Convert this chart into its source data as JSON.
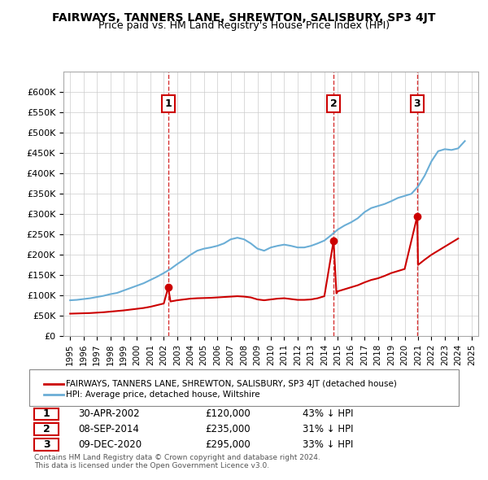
{
  "title": "FAIRWAYS, TANNERS LANE, SHREWTON, SALISBURY, SP3 4JT",
  "subtitle": "Price paid vs. HM Land Registry's House Price Index (HPI)",
  "ylim": [
    0,
    650000
  ],
  "yticks": [
    0,
    50000,
    100000,
    150000,
    200000,
    250000,
    300000,
    350000,
    400000,
    450000,
    500000,
    550000,
    600000
  ],
  "ytick_labels": [
    "£0",
    "£50K",
    "£100K",
    "£150K",
    "£200K",
    "£250K",
    "£300K",
    "£350K",
    "£400K",
    "£450K",
    "£500K",
    "£550K",
    "£600K"
  ],
  "hpi_color": "#6baed6",
  "price_color": "#cc0000",
  "sale_marker_color": "#cc0000",
  "vline_color": "#cc0000",
  "grid_color": "#cccccc",
  "bg_color": "#ffffff",
  "legend_box_color": "#000000",
  "sale_label_bg": "#ffffff",
  "sale_label_border": "#cc0000",
  "transactions": [
    {
      "date_year": 2002.33,
      "price": 120000,
      "label": "1",
      "vline_x": 2002.33
    },
    {
      "date_year": 2014.69,
      "price": 235000,
      "label": "2",
      "vline_x": 2014.69
    },
    {
      "date_year": 2020.94,
      "price": 295000,
      "label": "3",
      "vline_x": 2020.94
    }
  ],
  "transaction_table": [
    {
      "num": "1",
      "date": "30-APR-2002",
      "price": "£120,000",
      "hpi": "43% ↓ HPI"
    },
    {
      "num": "2",
      "date": "08-SEP-2014",
      "price": "£235,000",
      "hpi": "31% ↓ HPI"
    },
    {
      "num": "3",
      "date": "09-DEC-2020",
      "price": "£295,000",
      "hpi": "33% ↓ HPI"
    }
  ],
  "footer": "Contains HM Land Registry data © Crown copyright and database right 2024.\nThis data is licensed under the Open Government Licence v3.0.",
  "legend_property": "FAIRWAYS, TANNERS LANE, SHREWTON, SALISBURY, SP3 4JT (detached house)",
  "legend_hpi": "HPI: Average price, detached house, Wiltshire",
  "hpi_data_x": [
    1995,
    1995.5,
    1996,
    1996.5,
    1997,
    1997.5,
    1998,
    1998.5,
    1999,
    1999.5,
    2000,
    2000.5,
    2001,
    2001.5,
    2002,
    2002.5,
    2003,
    2003.5,
    2004,
    2004.5,
    2005,
    2005.5,
    2006,
    2006.5,
    2007,
    2007.5,
    2008,
    2008.5,
    2009,
    2009.5,
    2010,
    2010.5,
    2011,
    2011.5,
    2012,
    2012.5,
    2013,
    2013.5,
    2014,
    2014.5,
    2015,
    2015.5,
    2016,
    2016.5,
    2017,
    2017.5,
    2018,
    2018.5,
    2019,
    2019.5,
    2020,
    2020.5,
    2021,
    2021.5,
    2022,
    2022.5,
    2023,
    2023.5,
    2024,
    2024.5
  ],
  "hpi_data_y": [
    88000,
    89000,
    91000,
    93000,
    96000,
    99000,
    103000,
    106000,
    112000,
    118000,
    124000,
    130000,
    138000,
    146000,
    155000,
    165000,
    177000,
    188000,
    200000,
    210000,
    215000,
    218000,
    222000,
    228000,
    238000,
    242000,
    238000,
    228000,
    215000,
    210000,
    218000,
    222000,
    225000,
    222000,
    218000,
    218000,
    222000,
    228000,
    235000,
    248000,
    262000,
    272000,
    280000,
    290000,
    305000,
    315000,
    320000,
    325000,
    332000,
    340000,
    345000,
    350000,
    368000,
    395000,
    430000,
    455000,
    460000,
    458000,
    462000,
    480000
  ],
  "price_data_x": [
    1995,
    1995.5,
    1996,
    1996.5,
    1997,
    1997.5,
    1998,
    1998.5,
    1999,
    1999.5,
    2000,
    2000.5,
    2001,
    2001.5,
    2002,
    2002.33,
    2002.5,
    2003,
    2003.5,
    2004,
    2004.5,
    2005,
    2005.5,
    2006,
    2006.5,
    2007,
    2007.5,
    2008,
    2008.5,
    2009,
    2009.5,
    2010,
    2010.5,
    2011,
    2011.5,
    2012,
    2012.5,
    2013,
    2013.5,
    2014,
    2014.69,
    2014.9,
    2015,
    2015.5,
    2016,
    2016.5,
    2017,
    2017.5,
    2018,
    2018.5,
    2019,
    2019.5,
    2020,
    2020.94,
    2021,
    2021.5,
    2022,
    2022.5,
    2023,
    2023.5,
    2024
  ],
  "price_data_y": [
    55000,
    55500,
    56000,
    56500,
    57500,
    58500,
    60000,
    61500,
    63000,
    65000,
    67000,
    69000,
    72000,
    76000,
    80000,
    120000,
    85000,
    88000,
    90000,
    92000,
    93000,
    93500,
    94000,
    95000,
    96000,
    97000,
    98000,
    97000,
    95000,
    90000,
    88000,
    90000,
    92000,
    93000,
    91000,
    89000,
    89000,
    90000,
    93000,
    98000,
    235000,
    105000,
    110000,
    115000,
    120000,
    125000,
    132000,
    138000,
    142000,
    148000,
    155000,
    160000,
    165000,
    295000,
    175000,
    188000,
    200000,
    210000,
    220000,
    230000,
    240000
  ],
  "xlabel_years": [
    "1995",
    "1996",
    "1997",
    "1998",
    "1999",
    "2000",
    "2001",
    "2002",
    "2003",
    "2004",
    "2005",
    "2006",
    "2007",
    "2008",
    "2009",
    "2010",
    "2011",
    "2012",
    "2013",
    "2014",
    "2015",
    "2016",
    "2017",
    "2018",
    "2019",
    "2020",
    "2021",
    "2022",
    "2023",
    "2024",
    "2025"
  ]
}
